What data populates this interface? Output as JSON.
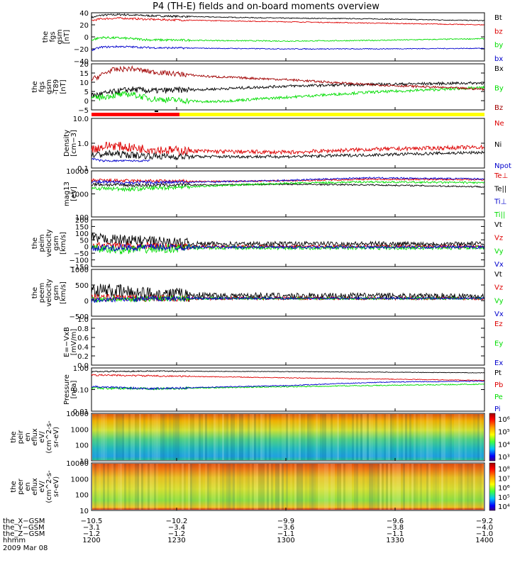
{
  "title": "P4 (TH-E) fields and on-board moments overview",
  "colors": {
    "black": "#000000",
    "red": "#dd0000",
    "darkred": "#a00000",
    "green": "#00dd00",
    "blue": "#0000cc",
    "yellow": "#ffff00"
  },
  "chart_data": [
    {
      "type": "line",
      "id": "fgs",
      "ylabel": [
        "the",
        "fgs",
        "gsm",
        "[nT]"
      ],
      "yticks": [
        "40",
        "20",
        "0",
        "−20",
        "−40"
      ],
      "ylim": [
        -40,
        40
      ],
      "legend": [
        {
          "name": "Bt",
          "color": "black"
        },
        {
          "name": "bz",
          "color": "red"
        },
        {
          "name": "by",
          "color": "green"
        },
        {
          "name": "bx",
          "color": "blue"
        }
      ],
      "series": [
        {
          "name": "Bt",
          "color": "black",
          "x": [
            1200,
            1205,
            1215,
            1230,
            1260,
            1300,
            1340,
            1400
          ],
          "values": [
            32,
            36,
            37,
            35,
            33,
            31,
            30,
            27
          ],
          "noise": 1.0
        },
        {
          "name": "bz",
          "color": "red",
          "x": [
            1200,
            1205,
            1215,
            1230,
            1260,
            1300,
            1340,
            1400
          ],
          "values": [
            27,
            30,
            31,
            29,
            27,
            25,
            23,
            20
          ],
          "noise": 1.0
        },
        {
          "name": "by",
          "color": "green",
          "x": [
            1200,
            1205,
            1215,
            1230,
            1260,
            1300,
            1340,
            1400
          ],
          "values": [
            -5,
            -1,
            -2,
            -5,
            -6,
            -7,
            -6,
            -3
          ],
          "noise": 1.2
        },
        {
          "name": "bx",
          "color": "blue",
          "x": [
            1200,
            1205,
            1215,
            1230,
            1260,
            1300,
            1340,
            1400
          ],
          "values": [
            -22,
            -17,
            -16,
            -18,
            -19,
            -20,
            -20,
            -19
          ],
          "noise": 1.0
        }
      ]
    },
    {
      "type": "line",
      "id": "fgs_t89",
      "ylabel": [
        "the",
        "fgs",
        "gsm",
        "-T89",
        "[nT]"
      ],
      "yticks": [
        "20",
        "15",
        "10",
        "5",
        "0",
        "−5"
      ],
      "ylim": [
        -7,
        22
      ],
      "legend": [
        {
          "name": "Bx",
          "color": "black"
        },
        {
          "name": "By",
          "color": "green"
        },
        {
          "name": "Bz",
          "color": "darkred"
        }
      ],
      "series": [
        {
          "name": "Bx",
          "color": "black",
          "x": [
            1200,
            1210,
            1220,
            1230,
            1260,
            1300,
            1340,
            1400
          ],
          "values": [
            2,
            4,
            6,
            5,
            6,
            8,
            9,
            10
          ],
          "noise": 1.2
        },
        {
          "name": "By",
          "color": "green",
          "x": [
            1200,
            1210,
            1220,
            1230,
            1260,
            1300,
            1340,
            1400
          ],
          "values": [
            0,
            2,
            3,
            0,
            -2,
            1,
            4,
            7
          ],
          "noise": 1.2
        },
        {
          "name": "Bz",
          "color": "darkred",
          "x": [
            1200,
            1210,
            1220,
            1230,
            1260,
            1300,
            1340,
            1400
          ],
          "values": [
            12,
            18,
            19,
            17,
            14,
            12,
            9,
            6
          ],
          "noise": 1.0
        }
      ]
    },
    {
      "type": "line",
      "id": "density",
      "ylabel": [
        "Density",
        "[cm−3]"
      ],
      "scale": "log",
      "yticks": [
        "10.0",
        "1.0",
        "0.1"
      ],
      "ylim": [
        0.1,
        12
      ],
      "legend": [
        {
          "name": "Ne",
          "color": "red"
        },
        {
          "name": "Ni",
          "color": "black"
        },
        {
          "name": "Npot",
          "color": "blue"
        }
      ],
      "series": [
        {
          "name": "Ne",
          "color": "red",
          "x": [
            1200,
            1210,
            1220,
            1240,
            1260,
            1300,
            1340,
            1400
          ],
          "values": [
            0.6,
            0.9,
            0.7,
            0.55,
            0.5,
            0.45,
            0.6,
            0.75
          ],
          "noise": 0.2
        },
        {
          "name": "Ni",
          "color": "black",
          "x": [
            1200,
            1210,
            1220,
            1240,
            1260,
            1300,
            1340,
            1400
          ],
          "values": [
            0.35,
            0.4,
            0.35,
            0.3,
            0.3,
            0.3,
            0.35,
            0.45
          ],
          "noise": 0.15
        },
        {
          "name": "Npot",
          "color": "blue",
          "x": [
            1200,
            1205,
            1210,
            1218,
            1230
          ],
          "values": [
            0.25,
            0.2,
            0.2,
            0.2,
            0.2
          ],
          "noise": 0.04
        }
      ]
    },
    {
      "type": "line",
      "id": "temp",
      "ylabel": [
        "mag13",
        "[eV]"
      ],
      "scale": "log",
      "yticks": [
        "10000",
        "1000",
        "100"
      ],
      "ylim": [
        100,
        12000
      ],
      "legend": [
        {
          "name": "Te⊥",
          "color": "red"
        },
        {
          "name": "Te||",
          "color": "black"
        },
        {
          "name": "Ti⊥",
          "color": "blue"
        },
        {
          "name": "Ti||",
          "color": "green"
        }
      ],
      "series": [
        {
          "name": "Te⊥",
          "color": "red",
          "x": [
            1200,
            1220,
            1260,
            1300,
            1340,
            1400
          ],
          "values": [
            4500,
            4200,
            4000,
            4300,
            5000,
            4800
          ],
          "noise": 0.08
        },
        {
          "name": "Te||",
          "color": "black",
          "x": [
            1200,
            1220,
            1260,
            1300,
            1340,
            1400
          ],
          "values": [
            3000,
            2700,
            2800,
            3000,
            2800,
            2300
          ],
          "noise": 0.08
        },
        {
          "name": "Ti⊥",
          "color": "blue",
          "x": [
            1200,
            1220,
            1260,
            1300,
            1340,
            1400
          ],
          "values": [
            3800,
            3500,
            3800,
            4500,
            5800,
            5200
          ],
          "noise": 0.08
        },
        {
          "name": "Ti||",
          "color": "green",
          "x": [
            1200,
            1220,
            1260,
            1300,
            1340,
            1400
          ],
          "values": [
            2000,
            1800,
            2500,
            3300,
            3800,
            3500
          ],
          "noise": 0.1
        }
      ]
    },
    {
      "type": "line",
      "id": "peim",
      "ylabel": [
        "the",
        "peim",
        "velocity",
        "gsm",
        "[km/s]"
      ],
      "yticks": [
        "200",
        "150",
        "100",
        "50",
        "0",
        "−50",
        "−100",
        "−150"
      ],
      "ylim": [
        -150,
        200
      ],
      "legend": [
        {
          "name": "Vt",
          "color": "black"
        },
        {
          "name": "Vz",
          "color": "red"
        },
        {
          "name": "Vy",
          "color": "green"
        },
        {
          "name": "Vx",
          "color": "blue"
        }
      ],
      "series": [
        {
          "name": "Vt",
          "color": "black",
          "x": [
            1200,
            1215,
            1230,
            1240,
            1250,
            1270,
            1400
          ],
          "values": [
            60,
            50,
            40,
            30,
            20,
            20,
            20
          ],
          "noise": 25
        },
        {
          "name": "Vz",
          "color": "red",
          "x": [
            1200,
            1215,
            1230,
            1250,
            1270,
            1400
          ],
          "values": [
            10,
            5,
            5,
            0,
            0,
            0
          ],
          "noise": 15
        },
        {
          "name": "Vy",
          "color": "green",
          "x": [
            1200,
            1215,
            1230,
            1250,
            1270,
            1400
          ],
          "values": [
            -20,
            -25,
            -20,
            -10,
            -10,
            -10
          ],
          "noise": 20
        },
        {
          "name": "Vx",
          "color": "blue",
          "x": [
            1200,
            1215,
            1230,
            1250,
            1270,
            1400
          ],
          "values": [
            -10,
            -10,
            -5,
            -5,
            -5,
            -5
          ],
          "noise": 15
        }
      ]
    },
    {
      "type": "line",
      "id": "peem",
      "ylabel": [
        "the",
        "peem",
        "velocity",
        "gsm",
        "[km/s]"
      ],
      "yticks": [
        "1000",
        "500",
        "0",
        "−500"
      ],
      "ylim": [
        -800,
        1300
      ],
      "legend": [
        {
          "name": "Vt",
          "color": "black"
        },
        {
          "name": "Vz",
          "color": "red"
        },
        {
          "name": "Vy",
          "color": "green"
        },
        {
          "name": "Vx",
          "color": "blue"
        }
      ],
      "series": [
        {
          "name": "Vt",
          "color": "black",
          "x": [
            1200,
            1215,
            1230,
            1250,
            1270,
            1400
          ],
          "values": [
            400,
            300,
            200,
            150,
            120,
            100
          ],
          "noise": 200
        },
        {
          "name": "Vz",
          "color": "red",
          "x": [
            1200,
            1215,
            1230,
            1250,
            1400
          ],
          "values": [
            50,
            20,
            0,
            0,
            0
          ],
          "noise": 100
        },
        {
          "name": "Vy",
          "color": "green",
          "x": [
            1200,
            1215,
            1230,
            1250,
            1400
          ],
          "values": [
            -50,
            -30,
            -10,
            0,
            0
          ],
          "noise": 80
        },
        {
          "name": "Vx",
          "color": "blue",
          "x": [
            1200,
            1215,
            1230,
            1250,
            1400
          ],
          "values": [
            -100,
            -50,
            -20,
            0,
            0
          ],
          "noise": 70
        }
      ]
    },
    {
      "type": "line",
      "id": "efield",
      "ylabel": [
        "E=−VxB",
        "[mV/m]"
      ],
      "yticks": [
        "1.0",
        "0.8",
        "0.6",
        "0.4",
        "0.2",
        "0.0"
      ],
      "ylim": [
        0,
        1
      ],
      "legend": [
        {
          "name": "Ez",
          "color": "red"
        },
        {
          "name": "Ey",
          "color": "green"
        },
        {
          "name": "Ex",
          "color": "blue"
        }
      ],
      "series": []
    },
    {
      "type": "line",
      "id": "pressure",
      "ylabel": [
        "Pressure",
        "[nPa]"
      ],
      "scale": "log",
      "yticks": [
        "1.00",
        "0.10",
        "0.01"
      ],
      "ylim": [
        0.01,
        1.2
      ],
      "legend": [
        {
          "name": "Pt",
          "color": "black"
        },
        {
          "name": "Pb",
          "color": "red"
        },
        {
          "name": "Pe",
          "color": "green"
        },
        {
          "name": "Pi",
          "color": "blue"
        }
      ],
      "series": [
        {
          "name": "Pt",
          "color": "black",
          "x": [
            1200,
            1230,
            1300,
            1400
          ],
          "values": [
            0.8,
            0.85,
            0.8,
            0.7
          ],
          "noise": 0.03
        },
        {
          "name": "Pb",
          "color": "red",
          "x": [
            1200,
            1230,
            1300,
            1400
          ],
          "values": [
            0.55,
            0.5,
            0.4,
            0.3
          ],
          "noise": 0.04
        },
        {
          "name": "Pe",
          "color": "green",
          "x": [
            1200,
            1230,
            1300,
            1400
          ],
          "values": [
            0.13,
            0.12,
            0.15,
            0.2
          ],
          "noise": 0.06
        },
        {
          "name": "Pi",
          "color": "blue",
          "x": [
            1200,
            1230,
            1300,
            1350,
            1400
          ],
          "values": [
            0.15,
            0.12,
            0.17,
            0.25,
            0.28
          ],
          "noise": 0.05
        }
      ]
    },
    {
      "type": "heatmap",
      "id": "peir",
      "ylabel": [
        "the",
        "peir",
        "en",
        "eflux",
        "eV/",
        "(cm^2-s-",
        "sr-eV)"
      ],
      "yticks": [
        "10000",
        "1000",
        "100",
        "10"
      ],
      "scale": "log",
      "colorbar_ticks": [
        "10⁶",
        "10⁵",
        "10⁴",
        "10³"
      ]
    },
    {
      "type": "heatmap",
      "id": "peer",
      "ylabel": [
        "the",
        "peer",
        "en",
        "eflux",
        "eV/",
        "(cm^2-s-",
        "sr-eV)"
      ],
      "yticks": [
        "10000",
        "1000",
        "100",
        "10"
      ],
      "scale": "log",
      "colorbar_ticks": [
        "10⁸",
        "10⁷",
        "10⁶",
        "10⁵",
        "10⁴"
      ]
    }
  ],
  "xaxis": {
    "rows": [
      {
        "label": "the_X−GSM",
        "values": [
          "−10.5",
          "−10.2",
          "−9.9",
          "−9.6",
          "−9.2"
        ]
      },
      {
        "label": "the_Y−GSM",
        "values": [
          "−3.1",
          "−3.4",
          "−3.6",
          "−3.8",
          "−4.0"
        ]
      },
      {
        "label": "the_Z−GSM",
        "values": [
          "−1.2",
          "−1.2",
          "−1.1",
          "−1.1",
          "−1.0"
        ]
      },
      {
        "label": "hhmm",
        "values": [
          "1200",
          "1230",
          "1300",
          "1330",
          "1400"
        ]
      }
    ],
    "date": "2009 Mar 08"
  }
}
